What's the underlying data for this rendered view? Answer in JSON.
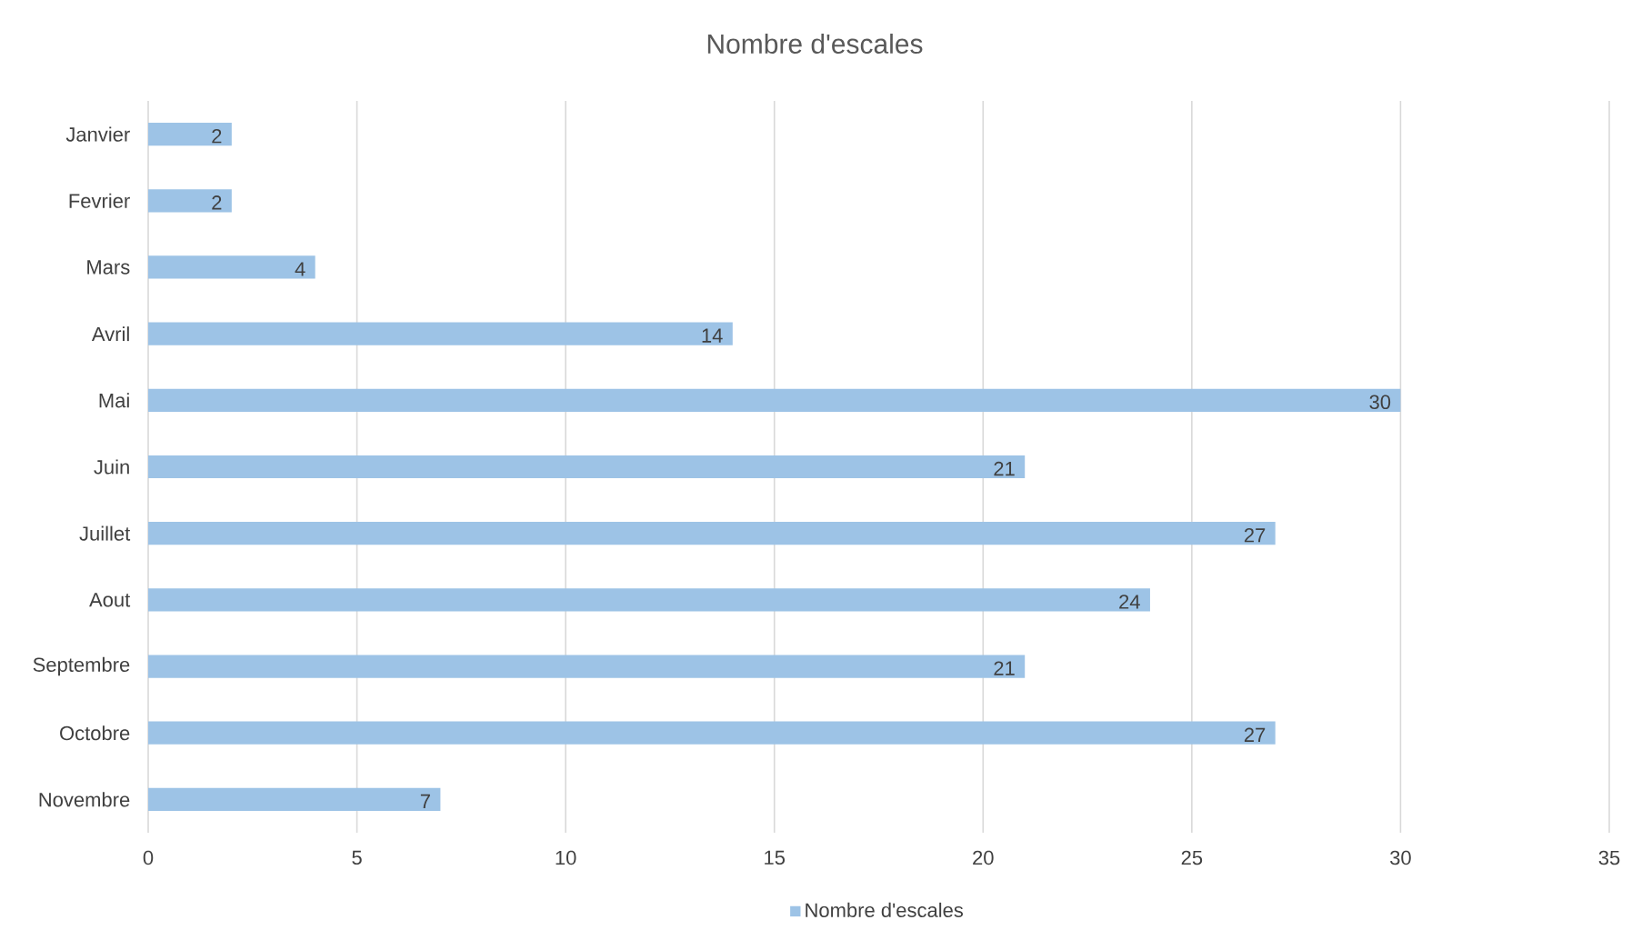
{
  "chart_data": {
    "type": "bar",
    "orientation": "horizontal",
    "title": "Nombre d'escales",
    "categories": [
      "Janvier",
      "Fevrier",
      "Mars",
      "Avril",
      "Mai",
      "Juin",
      "Juillet",
      "Aout",
      "Septembre",
      "Octobre",
      "Novembre"
    ],
    "series": [
      {
        "name": "Nombre d'escales",
        "color": "#9dc3e6",
        "values": [
          2,
          2,
          4,
          14,
          30,
          21,
          27,
          24,
          21,
          27,
          7
        ]
      }
    ],
    "xlim": [
      0,
      35
    ],
    "xticks": [
      0,
      5,
      10,
      15,
      20,
      25,
      30,
      35
    ],
    "grid": "x",
    "legend": "bottom",
    "data_labels": true
  }
}
